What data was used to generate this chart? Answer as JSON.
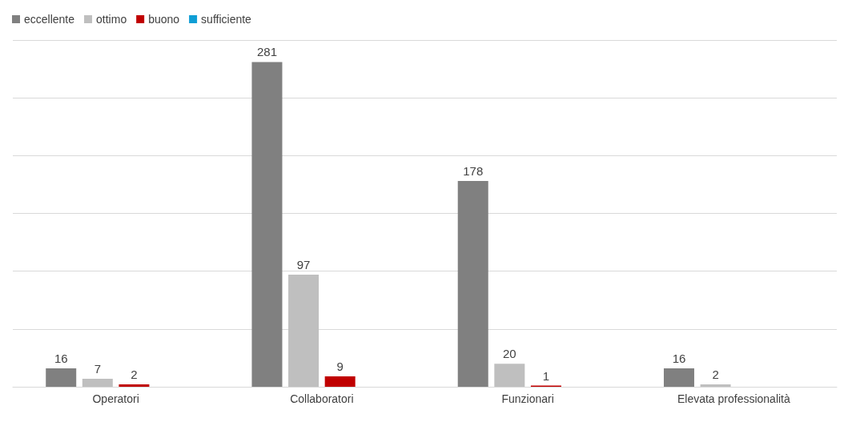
{
  "chart_data": {
    "type": "bar",
    "categories": [
      "Operatori",
      "Collaboratori",
      "Funzionari",
      "Elevata professionalità"
    ],
    "series": [
      {
        "name": "eccellente",
        "color": "#808080",
        "values": [
          16,
          281,
          178,
          16
        ]
      },
      {
        "name": "ottimo",
        "color": "#bfbfbf",
        "values": [
          7,
          97,
          20,
          2
        ]
      },
      {
        "name": "buono",
        "color": "#c00000",
        "values": [
          2,
          9,
          1,
          null
        ]
      },
      {
        "name": "sufficiente",
        "color": "#0f9ed5",
        "values": [
          null,
          null,
          null,
          null
        ]
      }
    ],
    "ylim": [
      0,
      300
    ],
    "yticks": [
      {
        "value": 0,
        "label": null
      },
      {
        "value": 50,
        "label": null
      },
      {
        "value": 100,
        "label": null
      },
      {
        "value": 150,
        "label": null
      },
      {
        "value": 200,
        "label": null
      },
      {
        "value": 250,
        "label": null
      },
      {
        "value": 300,
        "label": null
      }
    ],
    "tick_labels": "x",
    "grid": "y",
    "legend": "top left",
    "data_labels": true
  }
}
